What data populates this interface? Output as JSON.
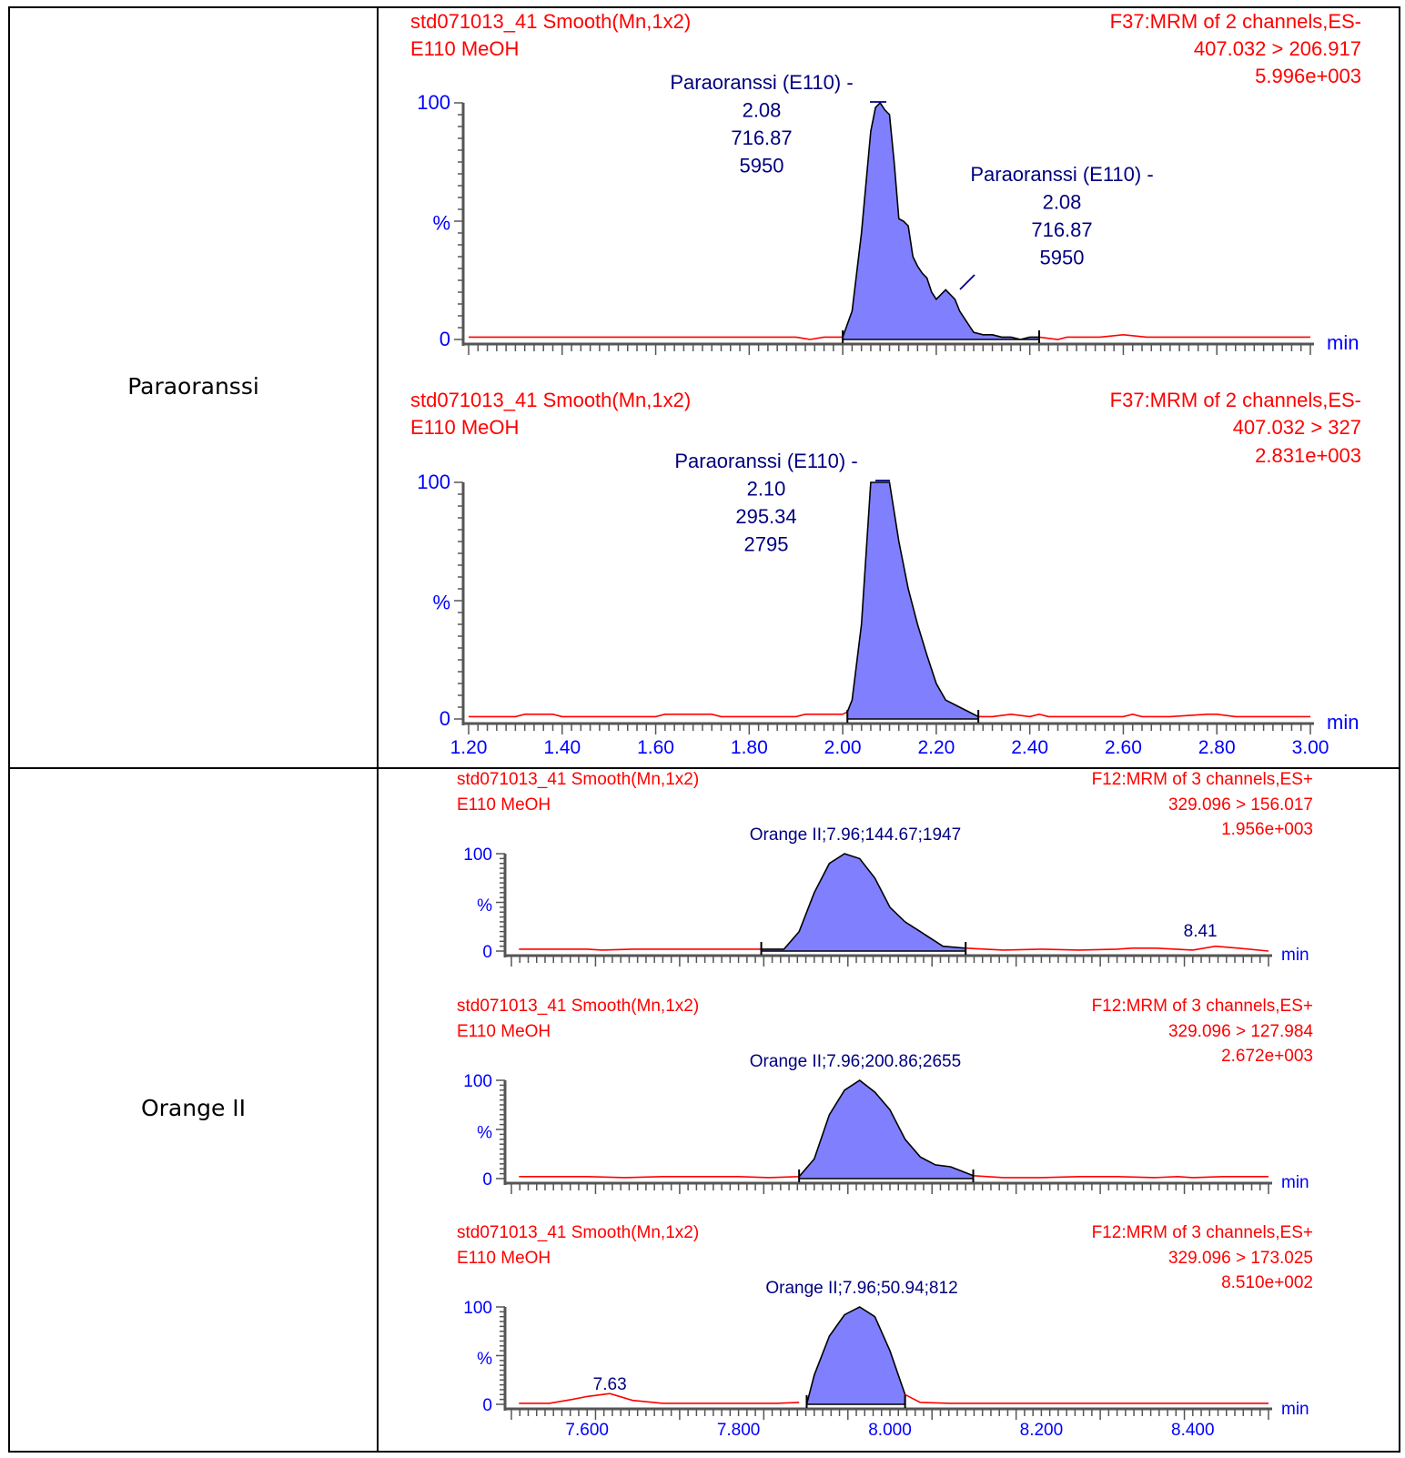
{
  "rows": [
    {
      "label": "Paraoranssi"
    },
    {
      "label": "Orange II"
    }
  ],
  "chart_data": [
    {
      "type": "line",
      "id": "p1",
      "header_left": [
        "std071013_41 Smooth(Mn,1x2)",
        "E110 MeOH"
      ],
      "header_right": [
        "F37:MRM of 2 channels,ES-",
        "407.032 > 206.917",
        "5.996e+003"
      ],
      "ylabel": "%",
      "xlabel": "min",
      "xlim": [
        1.2,
        3.0
      ],
      "ylim": [
        0,
        100
      ],
      "ytick_labels": [
        "0",
        "100"
      ],
      "xtick_labels": [],
      "peaks": [
        {
          "name": "Paraoranssi (E110) -",
          "rt": "2.08",
          "area": "716.87",
          "height": "5950"
        },
        {
          "name": "Paraoranssi (E110) -",
          "rt": "2.08",
          "area": "716.87",
          "height": "5950"
        }
      ],
      "integration": [
        2.0,
        2.42
      ],
      "series": [
        {
          "x": [
            1.2,
            1.3,
            1.4,
            1.5,
            1.6,
            1.7,
            1.8,
            1.9,
            1.93,
            1.96,
            2.0,
            2.02,
            2.04,
            2.06,
            2.07,
            2.08,
            2.09,
            2.1,
            2.11,
            2.12,
            2.13,
            2.14,
            2.15,
            2.16,
            2.17,
            2.18,
            2.19,
            2.2,
            2.22,
            2.24,
            2.25,
            2.26,
            2.28,
            2.3,
            2.32,
            2.34,
            2.36,
            2.38,
            2.4,
            2.42,
            2.46,
            2.48,
            2.5,
            2.55,
            2.6,
            2.65,
            2.7,
            2.8,
            2.9,
            3.0
          ],
          "y": [
            1,
            1,
            1,
            1,
            1,
            1,
            1,
            1,
            0,
            1,
            1,
            12,
            45,
            88,
            98,
            100,
            97,
            95,
            75,
            51,
            50,
            48,
            35,
            31,
            28,
            26,
            20,
            17,
            21,
            17,
            12,
            9,
            3,
            2,
            2,
            1,
            1,
            0,
            1,
            1,
            0,
            1,
            1,
            1,
            2,
            1,
            1,
            1,
            1,
            1
          ]
        }
      ]
    },
    {
      "type": "line",
      "id": "p2",
      "header_left": [
        "std071013_41 Smooth(Mn,1x2)",
        "E110 MeOH"
      ],
      "header_right": [
        "F37:MRM of 2 channels,ES-",
        "407.032 > 327",
        "2.831e+003"
      ],
      "ylabel": "%",
      "xlabel": "min",
      "xlim": [
        1.2,
        3.0
      ],
      "ylim": [
        0,
        100
      ],
      "ytick_labels": [
        "0",
        "100"
      ],
      "xtick_labels": [
        "1.20",
        "1.40",
        "1.60",
        "1.80",
        "2.00",
        "2.20",
        "2.40",
        "2.60",
        "2.80",
        "3.00"
      ],
      "peaks": [
        {
          "name": "Paraoranssi (E110) -",
          "rt": "2.10",
          "area": "295.34",
          "height": "2795"
        }
      ],
      "integration": [
        2.01,
        2.29
      ],
      "series": [
        {
          "x": [
            1.2,
            1.3,
            1.32,
            1.38,
            1.4,
            1.5,
            1.6,
            1.62,
            1.72,
            1.74,
            1.8,
            1.9,
            1.92,
            2.0,
            2.01,
            2.02,
            2.04,
            2.06,
            2.08,
            2.1,
            2.12,
            2.14,
            2.16,
            2.18,
            2.2,
            2.22,
            2.24,
            2.26,
            2.28,
            2.29,
            2.32,
            2.36,
            2.4,
            2.42,
            2.44,
            2.46,
            2.5,
            2.6,
            2.62,
            2.64,
            2.7,
            2.78,
            2.8,
            2.84,
            2.9,
            3.0
          ],
          "y": [
            1,
            1,
            2,
            2,
            1,
            1,
            1,
            2,
            2,
            1,
            1,
            1,
            2,
            2,
            3,
            8,
            40,
            100,
            100,
            100,
            75,
            55,
            40,
            27,
            15,
            8,
            6,
            4,
            2,
            1,
            1,
            2,
            1,
            2,
            1,
            1,
            1,
            1,
            2,
            1,
            1,
            2,
            2,
            1,
            1,
            1
          ]
        }
      ]
    },
    {
      "type": "line",
      "id": "o1",
      "header_left": [
        "std071013_41 Smooth(Mn,1x2)",
        "E110 MeOH"
      ],
      "header_right": [
        "F12:MRM of 3 channels,ES+",
        "329.096 > 156.017",
        "1.956e+003"
      ],
      "ylabel": "%",
      "xlabel": "min",
      "xlim": [
        7.5,
        8.5
      ],
      "ylim": [
        0,
        100
      ],
      "ytick_labels": [
        "0",
        "100"
      ],
      "xtick_labels": [],
      "peaks": [
        {
          "label": "Orange II;7.96;144.67;1947"
        }
      ],
      "minor_labels": [
        {
          "x": 8.41,
          "text": "8.41"
        }
      ],
      "integration": [
        7.83,
        8.1
      ],
      "series": [
        {
          "x": [
            7.51,
            7.56,
            7.6,
            7.62,
            7.66,
            7.7,
            7.75,
            7.8,
            7.83,
            7.86,
            7.88,
            7.9,
            7.92,
            7.94,
            7.96,
            7.98,
            8.0,
            8.02,
            8.04,
            8.06,
            8.07,
            8.1,
            8.15,
            8.2,
            8.25,
            8.3,
            8.32,
            8.35,
            8.4,
            8.43,
            8.46,
            8.5
          ],
          "y": [
            2,
            2,
            2,
            1,
            2,
            2,
            2,
            2,
            2,
            2,
            20,
            60,
            90,
            100,
            95,
            75,
            45,
            30,
            20,
            10,
            5,
            3,
            1,
            2,
            1,
            2,
            3,
            3,
            1,
            5,
            3,
            0
          ]
        }
      ]
    },
    {
      "type": "line",
      "id": "o2",
      "header_left": [
        "std071013_41 Smooth(Mn,1x2)",
        "E110 MeOH"
      ],
      "header_right": [
        "F12:MRM of 3 channels,ES+",
        "329.096 > 127.984",
        "2.672e+003"
      ],
      "ylabel": "%",
      "xlabel": "min",
      "xlim": [
        7.5,
        8.5
      ],
      "ylim": [
        0,
        100
      ],
      "ytick_labels": [
        "0",
        "100"
      ],
      "xtick_labels": [],
      "peaks": [
        {
          "label": "Orange II;7.96;200.86;2655"
        }
      ],
      "integration": [
        7.88,
        8.11
      ],
      "series": [
        {
          "x": [
            7.51,
            7.6,
            7.65,
            7.7,
            7.75,
            7.8,
            7.84,
            7.88,
            7.9,
            7.92,
            7.94,
            7.96,
            7.98,
            8.0,
            8.02,
            8.04,
            8.06,
            8.08,
            8.1,
            8.11,
            8.15,
            8.2,
            8.25,
            8.3,
            8.35,
            8.38,
            8.4,
            8.44,
            8.5
          ],
          "y": [
            2,
            2,
            1,
            2,
            2,
            2,
            1,
            2,
            20,
            65,
            90,
            100,
            88,
            70,
            40,
            22,
            14,
            12,
            6,
            3,
            1,
            1,
            2,
            2,
            1,
            2,
            1,
            2,
            2
          ]
        }
      ]
    },
    {
      "type": "line",
      "id": "o3",
      "header_left": [
        "std071013_41 Smooth(Mn,1x2)",
        "E110 MeOH"
      ],
      "header_right": [
        "F12:MRM of 3 channels,ES+",
        "329.096 > 173.025",
        "8.510e+002"
      ],
      "ylabel": "%",
      "xlabel": "min",
      "xlim": [
        7.5,
        8.5
      ],
      "ylim": [
        0,
        100
      ],
      "ytick_labels": [
        "0",
        "100"
      ],
      "xtick_labels": [
        "7.600",
        "7.800",
        "8.000",
        "8.200",
        "8.400"
      ],
      "peaks": [
        {
          "label": "Orange II;7.96;50.94;812"
        }
      ],
      "minor_labels": [
        {
          "x": 7.63,
          "text": "7.63"
        }
      ],
      "integration": [
        7.89,
        8.02
      ],
      "series": [
        {
          "x": [
            7.51,
            7.55,
            7.58,
            7.6,
            7.63,
            7.66,
            7.7,
            7.8,
            7.85,
            7.88,
            7.9,
            7.92,
            7.94,
            7.96,
            7.98,
            8.0,
            8.02,
            8.04,
            8.08,
            8.12,
            8.2,
            8.3,
            8.4,
            8.5
          ],
          "y": [
            1,
            1,
            5,
            8,
            11,
            4,
            1,
            1,
            1,
            2,
            30,
            70,
            92,
            100,
            90,
            55,
            10,
            2,
            1,
            1,
            1,
            1,
            1,
            1
          ]
        }
      ]
    }
  ]
}
